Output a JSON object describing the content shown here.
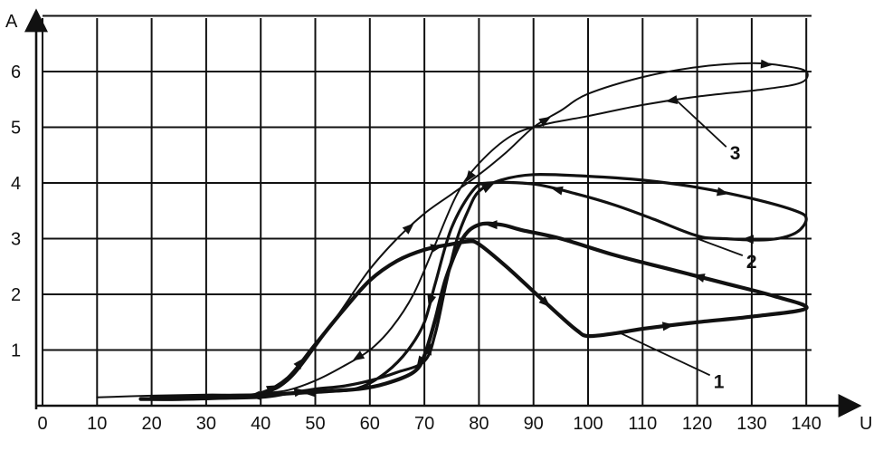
{
  "chart_data": {
    "type": "line",
    "title": "",
    "xlabel": "U",
    "ylabel": "A",
    "xlim": [
      0,
      142
    ],
    "ylim": [
      0,
      7
    ],
    "x_ticks": [
      "0",
      "10",
      "20",
      "30",
      "40",
      "50",
      "60",
      "70",
      "80",
      "90",
      "100",
      "110",
      "120",
      "130",
      "140"
    ],
    "y_ticks": [
      "1",
      "2",
      "3",
      "4",
      "5",
      "6"
    ],
    "grid": true,
    "series": [
      {
        "name": "1",
        "points": [
          [
            20,
            0.15
          ],
          [
            35,
            0.18
          ],
          [
            40,
            0.22
          ],
          [
            45,
            0.5
          ],
          [
            50,
            1.1
          ],
          [
            55,
            1.7
          ],
          [
            60,
            2.25
          ],
          [
            65,
            2.6
          ],
          [
            70,
            2.8
          ],
          [
            75,
            2.9
          ],
          [
            78,
            2.95
          ],
          [
            80,
            2.9
          ],
          [
            85,
            2.5
          ],
          [
            90,
            2.05
          ],
          [
            95,
            1.6
          ],
          [
            98,
            1.35
          ],
          [
            100,
            1.25
          ],
          [
            105,
            1.3
          ],
          [
            110,
            1.38
          ],
          [
            120,
            1.5
          ],
          [
            130,
            1.6
          ],
          [
            140,
            1.75
          ],
          [
            134,
            1.97
          ],
          [
            125,
            2.2
          ],
          [
            115,
            2.45
          ],
          [
            105,
            2.7
          ],
          [
            95,
            3.0
          ],
          [
            88,
            3.15
          ],
          [
            84,
            3.25
          ],
          [
            80,
            3.25
          ],
          [
            77,
            3.0
          ],
          [
            74,
            2.3
          ],
          [
            72,
            1.55
          ],
          [
            70,
            0.9
          ],
          [
            68,
            0.6
          ],
          [
            63,
            0.4
          ],
          [
            58,
            0.3
          ],
          [
            50,
            0.25
          ],
          [
            42,
            0.2
          ],
          [
            35,
            0.15
          ],
          [
            25,
            0.12
          ],
          [
            18,
            0.12
          ]
        ]
      },
      {
        "name": "2",
        "points": [
          [
            18,
            0.12
          ],
          [
            30,
            0.13
          ],
          [
            40,
            0.15
          ],
          [
            45,
            0.22
          ],
          [
            50,
            0.3
          ],
          [
            55,
            0.35
          ],
          [
            60,
            0.45
          ],
          [
            65,
            0.6
          ],
          [
            70,
            0.8
          ],
          [
            72,
            1.3
          ],
          [
            74,
            2.2
          ],
          [
            76,
            3.0
          ],
          [
            78,
            3.5
          ],
          [
            80,
            3.85
          ],
          [
            84,
            4.05
          ],
          [
            90,
            4.15
          ],
          [
            100,
            4.12
          ],
          [
            110,
            4.05
          ],
          [
            120,
            3.92
          ],
          [
            130,
            3.72
          ],
          [
            138,
            3.5
          ],
          [
            140,
            3.35
          ],
          [
            138,
            3.1
          ],
          [
            133,
            2.98
          ],
          [
            125,
            3.0
          ],
          [
            120,
            3.05
          ],
          [
            112,
            3.35
          ],
          [
            105,
            3.6
          ],
          [
            98,
            3.8
          ],
          [
            90,
            3.98
          ],
          [
            82,
            4.0
          ],
          [
            79,
            3.88
          ],
          [
            75,
            3.2
          ],
          [
            72,
            2.2
          ],
          [
            70,
            1.5
          ],
          [
            67,
            1.0
          ],
          [
            63,
            0.6
          ],
          [
            58,
            0.32
          ],
          [
            52,
            0.25
          ],
          [
            45,
            0.22
          ],
          [
            40,
            0.2
          ]
        ]
      },
      {
        "name": "3",
        "points": [
          [
            10,
            0.15
          ],
          [
            20,
            0.18
          ],
          [
            30,
            0.2
          ],
          [
            40,
            0.22
          ],
          [
            45,
            0.45
          ],
          [
            50,
            1.05
          ],
          [
            55,
            1.75
          ],
          [
            60,
            2.45
          ],
          [
            65,
            3.0
          ],
          [
            70,
            3.45
          ],
          [
            75,
            3.8
          ],
          [
            80,
            4.15
          ],
          [
            85,
            4.55
          ],
          [
            90,
            5.0
          ],
          [
            95,
            5.3
          ],
          [
            100,
            5.6
          ],
          [
            110,
            5.9
          ],
          [
            120,
            6.08
          ],
          [
            130,
            6.15
          ],
          [
            136,
            6.1
          ],
          [
            140,
            6.0
          ],
          [
            139,
            5.8
          ],
          [
            132,
            5.68
          ],
          [
            120,
            5.55
          ],
          [
            110,
            5.4
          ],
          [
            100,
            5.2
          ],
          [
            92,
            5.05
          ],
          [
            86,
            4.85
          ],
          [
            80,
            4.35
          ],
          [
            76,
            3.8
          ],
          [
            72,
            2.9
          ],
          [
            68,
            2.0
          ],
          [
            64,
            1.4
          ],
          [
            60,
            1.0
          ],
          [
            55,
            0.7
          ],
          [
            50,
            0.45
          ],
          [
            45,
            0.28
          ],
          [
            40,
            0.22
          ]
        ]
      }
    ],
    "annotations": [
      {
        "text": "1",
        "target": [
          106,
          1.3
        ],
        "at": [
          123,
          0.45
        ]
      },
      {
        "text": "2",
        "target": [
          120,
          3.0
        ],
        "at": [
          129,
          2.6
        ]
      },
      {
        "text": "3",
        "target": [
          116,
          5.5
        ],
        "at": [
          126,
          4.55
        ]
      }
    ]
  }
}
